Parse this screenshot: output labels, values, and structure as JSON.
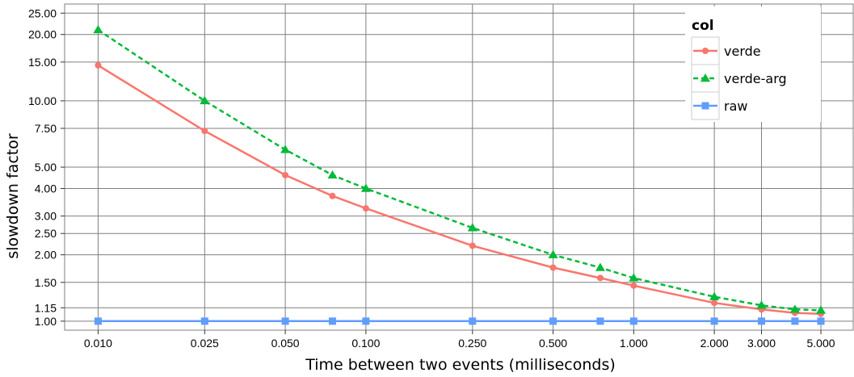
{
  "chart_data": {
    "type": "line",
    "xlabel": "Time between two events (milliseconds)",
    "ylabel": "slowdown factor",
    "x_scale": "log",
    "y_scale": "log",
    "grid": true,
    "legend_position": "top-right",
    "xlim": [
      0.0075,
      6.6
    ],
    "ylim": [
      0.91,
      27.5
    ],
    "x_ticks": [
      0.01,
      0.025,
      0.05,
      0.1,
      0.25,
      0.5,
      1,
      2,
      3,
      5
    ],
    "x_tick_labels": [
      "0.010",
      "0.025",
      "0.050",
      "0.100",
      "0.250",
      "0.500",
      "1.000",
      "2.000",
      "3.000",
      "5.000"
    ],
    "y_ticks": [
      1,
      1.15,
      1.5,
      2,
      2.5,
      3,
      4,
      5,
      7.5,
      10,
      15,
      20,
      25
    ],
    "y_tick_labels": [
      "1.00",
      "1.15",
      "1.50",
      "2.00",
      "2.50",
      "3.00",
      "4.00",
      "5.00",
      "7.50",
      "10.00",
      "15.00",
      "20.00",
      "25.00"
    ],
    "legend": {
      "title": "col"
    },
    "series": [
      {
        "name": "verde",
        "color": "#F8766D",
        "marker": "circle",
        "dash": "solid",
        "x": [
          0.01,
          0.025,
          0.05,
          0.075,
          0.1,
          0.25,
          0.5,
          0.75,
          1,
          2,
          3,
          4,
          5
        ],
        "y": [
          14.5,
          7.3,
          4.6,
          3.7,
          3.25,
          2.2,
          1.75,
          1.57,
          1.45,
          1.21,
          1.13,
          1.09,
          1.08
        ]
      },
      {
        "name": "verde-arg",
        "color": "#00BA38",
        "marker": "triangle",
        "dash": "dashed",
        "x": [
          0.01,
          0.025,
          0.05,
          0.075,
          0.1,
          0.25,
          0.5,
          0.75,
          1,
          2,
          3,
          4,
          5
        ],
        "y": [
          21.0,
          10.0,
          6.0,
          4.6,
          4.0,
          2.65,
          2.0,
          1.75,
          1.57,
          1.29,
          1.18,
          1.13,
          1.12
        ]
      },
      {
        "name": "raw",
        "color": "#619CFF",
        "marker": "square",
        "dash": "solid",
        "x": [
          0.01,
          0.025,
          0.05,
          0.075,
          0.1,
          0.25,
          0.5,
          0.75,
          1,
          2,
          3,
          4,
          5
        ],
        "y": [
          1,
          1,
          1,
          1,
          1,
          1,
          1,
          1,
          1,
          1,
          1,
          1,
          1
        ]
      }
    ]
  }
}
